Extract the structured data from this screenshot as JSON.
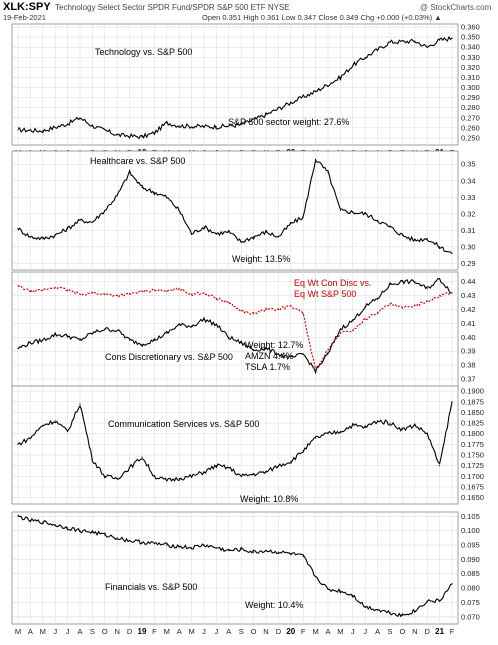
{
  "header": {
    "ticker": "XLK:SPY",
    "description": "Technology Select Sector SPDR Fund/SPDR S&P 500 ETF  NYSE",
    "logo": "@ StockCharts.com",
    "date": "19-Feb-2021",
    "quote": "Open 0.351  High 0.361  Low 0.347  Close 0.349  Chg +0.000 (+0.03%) ▲"
  },
  "x_axis": {
    "labels": [
      "M",
      "A",
      "M",
      "J",
      "J",
      "A",
      "S",
      "O",
      "N",
      "D",
      "19",
      "F",
      "M",
      "A",
      "M",
      "J",
      "J",
      "A",
      "S",
      "O",
      "N",
      "D",
      "20",
      "F",
      "M",
      "A",
      "M",
      "J",
      "J",
      "A",
      "S",
      "O",
      "N",
      "D",
      "21",
      "F"
    ],
    "bold_labels": [
      "19",
      "20",
      "21"
    ]
  },
  "colors": {
    "line": "#000000",
    "red_line": "#cc0000",
    "grid": "#d9d9d9",
    "frame": "#888888"
  },
  "chart_data": [
    {
      "type": "line",
      "id": "technology",
      "annotations": [
        "Technology vs. S&P 500",
        "S&P 500 sector weight: 27.6%"
      ],
      "y_ticks": [
        "0.360",
        "0.350",
        "0.340",
        "0.330",
        "0.320",
        "0.310",
        "0.300",
        "0.290",
        "0.280",
        "0.270",
        "0.260",
        "0.250"
      ],
      "ylim": [
        0.243,
        0.363
      ],
      "x": [
        0,
        2,
        4,
        5,
        6,
        8,
        10,
        11,
        12,
        13,
        16,
        18,
        20,
        22,
        24,
        26,
        27,
        28,
        30,
        32,
        33,
        34,
        35
      ],
      "series": [
        {
          "values": [
            0.258,
            0.257,
            0.264,
            0.27,
            0.262,
            0.253,
            0.251,
            0.255,
            0.265,
            0.262,
            0.261,
            0.263,
            0.273,
            0.285,
            0.296,
            0.31,
            0.322,
            0.33,
            0.345,
            0.346,
            0.34,
            0.347,
            0.349
          ]
        }
      ]
    },
    {
      "type": "line",
      "id": "healthcare",
      "annotations": [
        "Healthcare vs. S&P 500",
        "Weight: 13.5%"
      ],
      "y_ticks": [
        "0.35",
        "0.34",
        "0.33",
        "0.32",
        "0.31",
        "0.30",
        "0.29"
      ],
      "ylim": [
        0.286,
        0.358
      ],
      "x": [
        0,
        1,
        2,
        3,
        4,
        5,
        6,
        7,
        8,
        9,
        10,
        11,
        12,
        13,
        14,
        15,
        16,
        17,
        18,
        19,
        20,
        21,
        22,
        23,
        24,
        25,
        26,
        27,
        28,
        29,
        30,
        31,
        32,
        33,
        34,
        35
      ],
      "series": [
        {
          "values": [
            0.311,
            0.306,
            0.305,
            0.307,
            0.311,
            0.316,
            0.315,
            0.322,
            0.331,
            0.345,
            0.336,
            0.333,
            0.33,
            0.322,
            0.308,
            0.312,
            0.308,
            0.309,
            0.303,
            0.306,
            0.309,
            0.306,
            0.314,
            0.318,
            0.353,
            0.345,
            0.322,
            0.321,
            0.32,
            0.316,
            0.312,
            0.307,
            0.304,
            0.305,
            0.3,
            0.296
          ]
        }
      ]
    },
    {
      "type": "line",
      "id": "cons-discretionary",
      "annotations": [
        "Eq Wt Con Disc vs.",
        "Eq Wt S&P 500",
        "Cons Discretionary vs. S&P 500",
        "Weight: 12.7%",
        "AMZN 4.4%",
        "TSLA 1.7%"
      ],
      "y_ticks": [
        "0.44",
        "0.43",
        "0.42",
        "0.41",
        "0.40",
        "0.39",
        "0.38",
        "0.37"
      ],
      "ylim": [
        0.365,
        0.447
      ],
      "x": [
        0,
        1,
        2,
        3,
        4,
        5,
        6,
        7,
        8,
        9,
        10,
        11,
        12,
        13,
        14,
        15,
        16,
        17,
        18,
        19,
        20,
        21,
        22,
        23,
        24,
        25,
        26,
        27,
        28,
        29,
        30,
        31,
        32,
        33,
        34,
        35
      ],
      "series": [
        {
          "name": "Cons Discretionary vs. S&P 500",
          "values": [
            0.392,
            0.396,
            0.398,
            0.402,
            0.401,
            0.398,
            0.403,
            0.406,
            0.405,
            0.398,
            0.395,
            0.398,
            0.403,
            0.409,
            0.408,
            0.413,
            0.409,
            0.4,
            0.396,
            0.391,
            0.392,
            0.388,
            0.385,
            0.388,
            0.376,
            0.388,
            0.406,
            0.412,
            0.422,
            0.428,
            0.438,
            0.44,
            0.44,
            0.435,
            0.442,
            0.432
          ]
        },
        {
          "name": "Eq Wt Con Disc vs. Eq Wt S&P 500",
          "values": [
            0.437,
            0.433,
            0.434,
            0.436,
            0.434,
            0.431,
            0.432,
            0.431,
            0.43,
            0.431,
            0.433,
            0.434,
            0.433,
            0.435,
            0.431,
            0.432,
            0.428,
            0.425,
            0.419,
            0.417,
            0.42,
            0.42,
            0.423,
            0.417,
            0.376,
            0.391,
            0.403,
            0.405,
            0.413,
            0.418,
            0.424,
            0.421,
            0.423,
            0.426,
            0.43,
            0.432
          ]
        }
      ]
    },
    {
      "type": "line",
      "id": "communication-services",
      "annotations": [
        "Communication Services vs. S&P 500",
        "Weight: 10.8%"
      ],
      "y_ticks": [
        "0.1900",
        "0.1875",
        "0.1850",
        "0.1825",
        "0.1800",
        "0.1775",
        "0.1750",
        "0.1725",
        "0.1700",
        "0.1675",
        "0.1650"
      ],
      "ylim": [
        0.1635,
        0.1912
      ],
      "x": [
        0,
        1,
        2,
        3,
        4,
        5,
        6,
        7,
        8,
        9,
        10,
        11,
        12,
        13,
        14,
        15,
        16,
        17,
        18,
        19,
        20,
        21,
        22,
        23,
        24,
        25,
        26,
        27,
        28,
        29,
        30,
        31,
        32,
        33,
        34,
        35
      ],
      "series": [
        {
          "values": [
            0.1775,
            0.179,
            0.182,
            0.183,
            0.1805,
            0.187,
            0.174,
            0.17,
            0.1695,
            0.172,
            0.1745,
            0.17,
            0.169,
            0.1695,
            0.17,
            0.171,
            0.1725,
            0.172,
            0.17,
            0.1705,
            0.171,
            0.1725,
            0.1735,
            0.176,
            0.179,
            0.18,
            0.1805,
            0.182,
            0.1815,
            0.183,
            0.1825,
            0.181,
            0.182,
            0.18,
            0.1725,
            0.1875
          ]
        }
      ]
    },
    {
      "type": "line",
      "id": "financials",
      "annotations": [
        "Financials vs. S&P 500",
        "Weight: 10.4%"
      ],
      "y_ticks": [
        "0.105",
        "0.100",
        "0.095",
        "0.090",
        "0.085",
        "0.080",
        "0.075",
        "0.070"
      ],
      "ylim": [
        0.0675,
        0.1065
      ],
      "x": [
        0,
        1,
        2,
        3,
        4,
        5,
        6,
        7,
        8,
        9,
        10,
        11,
        12,
        13,
        14,
        15,
        16,
        17,
        18,
        19,
        20,
        21,
        22,
        23,
        24,
        25,
        26,
        27,
        28,
        29,
        30,
        31,
        32,
        33,
        34,
        35
      ],
      "series": [
        {
          "values": [
            0.105,
            0.1035,
            0.103,
            0.102,
            0.101,
            0.1,
            0.0995,
            0.0985,
            0.0975,
            0.0965,
            0.096,
            0.0955,
            0.095,
            0.0945,
            0.094,
            0.095,
            0.094,
            0.093,
            0.0935,
            0.0925,
            0.093,
            0.0925,
            0.092,
            0.091,
            0.084,
            0.0795,
            0.079,
            0.0775,
            0.0735,
            0.0725,
            0.0715,
            0.0705,
            0.072,
            0.0755,
            0.0755,
            0.0815
          ]
        }
      ]
    }
  ]
}
